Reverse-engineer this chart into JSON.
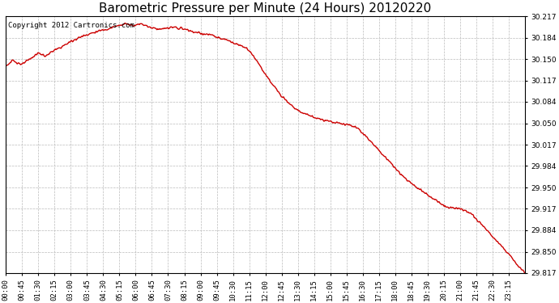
{
  "title": "Barometric Pressure per Minute (24 Hours) 20120220",
  "copyright_text": "Copyright 2012 Cartronics.com",
  "line_color": "#cc0000",
  "background_color": "#ffffff",
  "plot_bg_color": "#ffffff",
  "grid_color": "#bbbbbb",
  "ylim": [
    29.817,
    30.217
  ],
  "yticks": [
    29.817,
    29.85,
    29.884,
    29.917,
    29.95,
    29.984,
    30.017,
    30.05,
    30.084,
    30.117,
    30.15,
    30.184,
    30.217
  ],
  "xtick_labels": [
    "00:00",
    "00:45",
    "01:30",
    "02:15",
    "03:00",
    "03:45",
    "04:30",
    "05:15",
    "06:00",
    "06:45",
    "07:30",
    "08:15",
    "09:00",
    "09:45",
    "10:30",
    "11:15",
    "12:00",
    "12:45",
    "13:30",
    "14:15",
    "15:00",
    "15:45",
    "16:30",
    "17:15",
    "18:00",
    "18:45",
    "19:30",
    "20:15",
    "21:00",
    "21:45",
    "22:30",
    "23:15"
  ],
  "title_fontsize": 11,
  "tick_fontsize": 6.5,
  "copyright_fontsize": 6.5,
  "line_width": 1.0,
  "key_times": [
    0,
    20,
    45,
    70,
    90,
    110,
    130,
    150,
    180,
    220,
    270,
    310,
    330,
    355,
    375,
    400,
    430,
    460,
    490,
    520,
    545,
    570,
    590,
    615,
    635,
    660,
    675,
    690,
    710,
    730,
    755,
    780,
    810,
    840,
    870,
    900,
    930,
    955,
    975,
    1000,
    1020,
    1060,
    1100,
    1140,
    1180,
    1220,
    1260,
    1290,
    1310,
    1340,
    1370,
    1400,
    1420,
    1440
  ],
  "key_vals": [
    30.14,
    30.148,
    30.142,
    30.152,
    30.16,
    30.155,
    30.163,
    30.168,
    30.178,
    30.188,
    30.196,
    30.202,
    30.206,
    30.203,
    30.206,
    30.2,
    30.197,
    30.2,
    30.198,
    30.193,
    30.19,
    30.188,
    30.183,
    30.18,
    30.175,
    30.17,
    30.163,
    30.153,
    30.135,
    30.118,
    30.1,
    30.085,
    30.07,
    30.063,
    30.057,
    30.053,
    30.05,
    30.048,
    30.043,
    30.03,
    30.017,
    29.993,
    29.968,
    29.95,
    29.935,
    29.92,
    29.917,
    29.91,
    29.898,
    29.88,
    29.862,
    29.843,
    29.828,
    29.817
  ]
}
